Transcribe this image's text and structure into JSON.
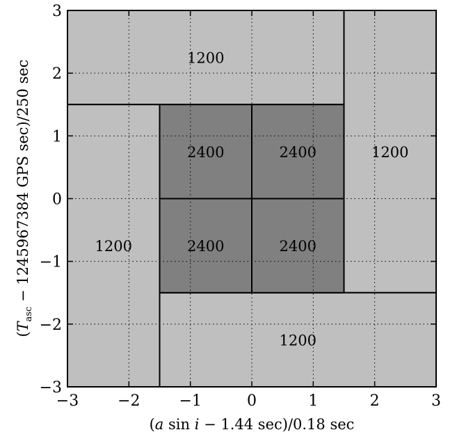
{
  "chart_data": {
    "type": "region",
    "xlabel": "(a sin i − 1.44 sec)/0.18 sec",
    "ylabel": "(T_asc − 1245967384 GPS sec)/250 sec",
    "xlim": [
      -3,
      3
    ],
    "ylim": [
      -3,
      3
    ],
    "xticks": [
      -3,
      -2,
      -1,
      0,
      1,
      2,
      3
    ],
    "yticks": [
      -3,
      -2,
      -1,
      0,
      1,
      2,
      3
    ],
    "grid": true,
    "regions": [
      {
        "x0": -3,
        "x1": 1.5,
        "y0": 1.5,
        "y1": 3,
        "label": "1200",
        "label_at": [
          -0.75,
          2.25
        ],
        "color": "#bfbfbf"
      },
      {
        "x0": 1.5,
        "x1": 3,
        "y0": -1.5,
        "y1": 3,
        "label": "1200",
        "label_at": [
          2.25,
          0.75
        ],
        "color": "#bfbfbf"
      },
      {
        "x0": -1.5,
        "x1": 3,
        "y0": -3,
        "y1": -1.5,
        "label": "1200",
        "label_at": [
          0.75,
          -2.25
        ],
        "color": "#bfbfbf"
      },
      {
        "x0": -3,
        "x1": -1.5,
        "y0": -3,
        "y1": 1.5,
        "label": "1200",
        "label_at": [
          -2.25,
          -0.75
        ],
        "color": "#bfbfbf"
      },
      {
        "x0": -1.5,
        "x1": 0,
        "y0": 0,
        "y1": 1.5,
        "label": "2400",
        "label_at": [
          -0.75,
          0.75
        ],
        "color": "#808080"
      },
      {
        "x0": 0,
        "x1": 1.5,
        "y0": 0,
        "y1": 1.5,
        "label": "2400",
        "label_at": [
          0.75,
          0.75
        ],
        "color": "#808080"
      },
      {
        "x0": -1.5,
        "x1": 0,
        "y0": -1.5,
        "y1": 0,
        "label": "2400",
        "label_at": [
          -0.75,
          -0.75
        ],
        "color": "#808080"
      },
      {
        "x0": 0,
        "x1": 1.5,
        "y0": -1.5,
        "y1": 0,
        "label": "2400",
        "label_at": [
          0.75,
          -0.75
        ],
        "color": "#808080"
      }
    ]
  }
}
